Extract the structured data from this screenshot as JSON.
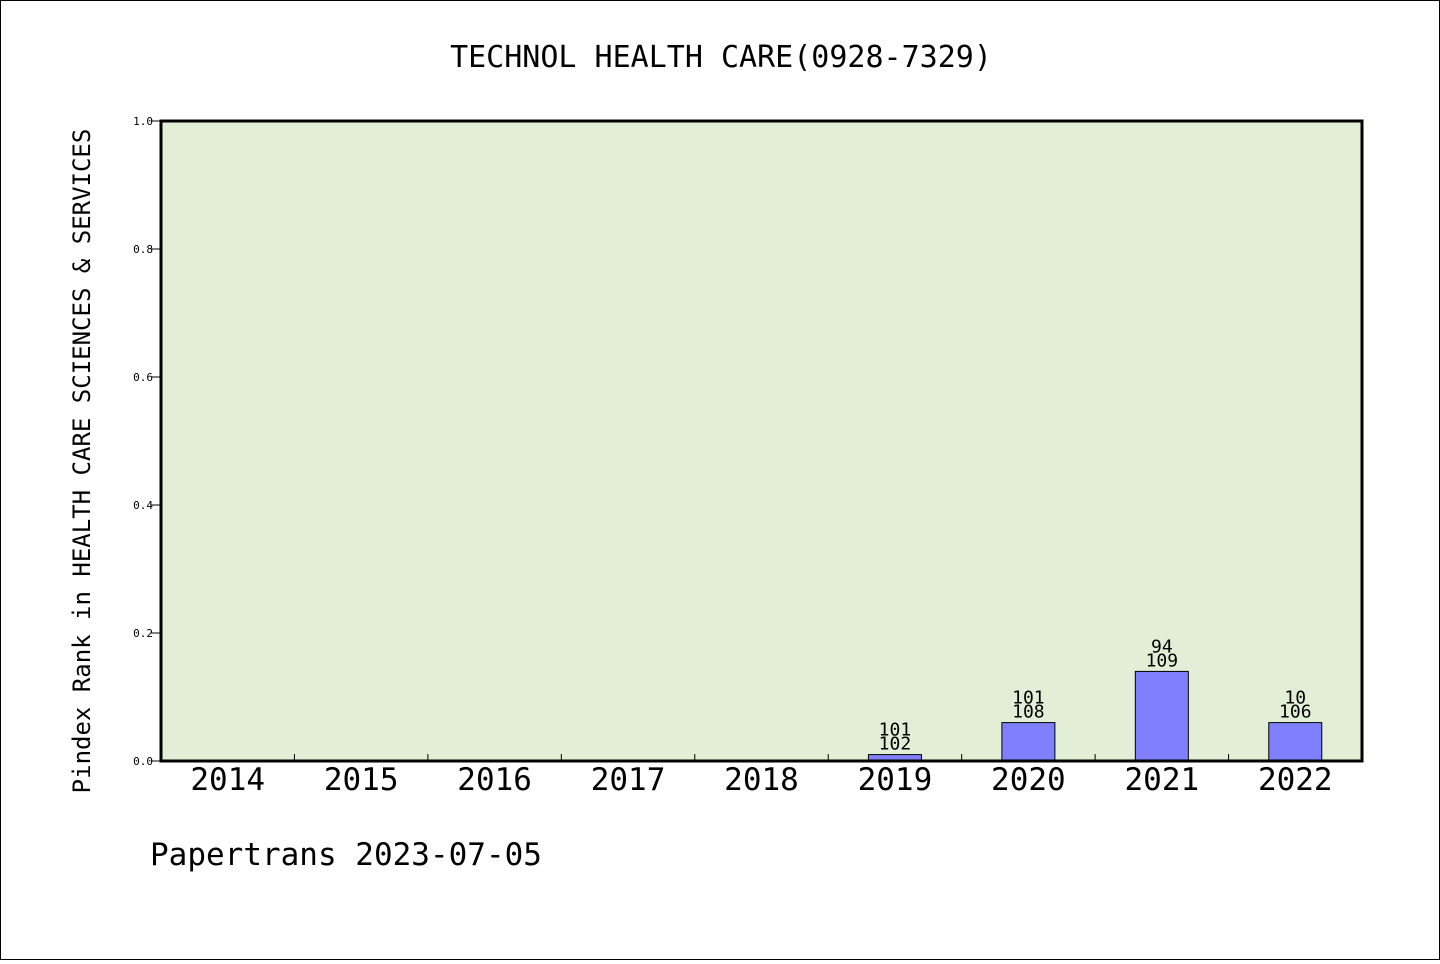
{
  "chart_data": {
    "type": "bar",
    "title": "TECHNOL HEALTH CARE(0928-7329)",
    "xlabel": "",
    "ylabel": "Pindex Rank in HEALTH CARE SCIENCES & SERVICES",
    "ylim": [
      0,
      1.0
    ],
    "yticks": [
      "0.0",
      "0.2",
      "0.4",
      "0.6",
      "0.8",
      "1.0"
    ],
    "categories": [
      "2014",
      "2015",
      "2016",
      "2017",
      "2018",
      "2019",
      "2020",
      "2021",
      "2022"
    ],
    "values": [
      0,
      0,
      0,
      0,
      0,
      0.01,
      0.06,
      0.14,
      0.06
    ],
    "bar_labels": [
      [
        "",
        ""
      ],
      [
        "",
        ""
      ],
      [
        "",
        ""
      ],
      [
        "",
        ""
      ],
      [
        "",
        ""
      ],
      [
        "101",
        "102"
      ],
      [
        "101",
        "108"
      ],
      [
        "94",
        "109"
      ],
      [
        "10",
        "106"
      ]
    ],
    "grid": false,
    "colors": {
      "bar": "#8080ff",
      "plot_bg": "#e2efd6",
      "axis": "#000000"
    }
  },
  "footer": {
    "text": "Papertrans 2023-07-05"
  }
}
